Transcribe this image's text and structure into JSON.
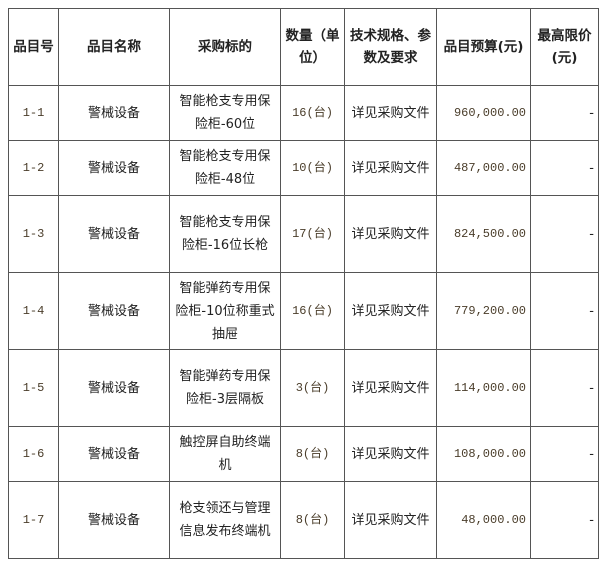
{
  "headers": [
    "品目号",
    "品目名称",
    "采购标的",
    "数量（单位）",
    "技术规格、参数及要求",
    "品目预算(元)",
    "最高限价(元)"
  ],
  "rows": [
    {
      "id": "1-1",
      "name": "警械设备",
      "target": "智能枪支专用保险柜-60位",
      "qty": "16(台)",
      "spec": "详见采购文件",
      "budget": "960,000.00",
      "max": "-"
    },
    {
      "id": "1-2",
      "name": "警械设备",
      "target": "智能枪支专用保险柜-48位",
      "qty": "10(台)",
      "spec": "详见采购文件",
      "budget": "487,000.00",
      "max": "-"
    },
    {
      "id": "1-3",
      "name": "警械设备",
      "target": "智能枪支专用保险柜-16位长枪",
      "qty": "17(台)",
      "spec": "详见采购文件",
      "budget": "824,500.00",
      "max": "-"
    },
    {
      "id": "1-4",
      "name": "警械设备",
      "target": "智能弹药专用保险柜-10位称重式抽屉",
      "qty": "16(台)",
      "spec": "详见采购文件",
      "budget": "779,200.00",
      "max": "-"
    },
    {
      "id": "1-5",
      "name": "警械设备",
      "target": "智能弹药专用保险柜-3层隔板",
      "qty": "3(台)",
      "spec": "详见采购文件",
      "budget": "114,000.00",
      "max": "-"
    },
    {
      "id": "1-6",
      "name": "警械设备",
      "target": "触控屏自助终端机",
      "qty": "8(台)",
      "spec": "详见采购文件",
      "budget": "108,000.00",
      "max": "-"
    },
    {
      "id": "1-7",
      "name": "警械设备",
      "target": "枪支领还与管理信息发布终端机",
      "qty": "8(台)",
      "spec": "详见采购文件",
      "budget": "48,000.00",
      "max": "-"
    }
  ]
}
